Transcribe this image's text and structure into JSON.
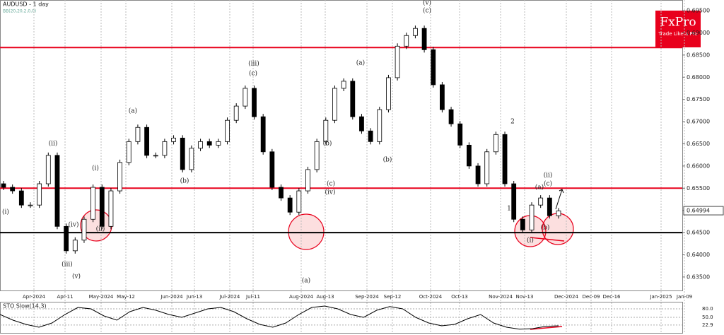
{
  "chart_data": {
    "type": "candlestick",
    "title": "AUDUSD - 1 day",
    "subtitle": "BB(20,20,2,0,0)",
    "ylim": [
      0.6318,
      0.6974
    ],
    "yticks": [
      {
        "value": 0.695,
        "label": "0.69500"
      },
      {
        "value": 0.69,
        "label": "0.69000"
      },
      {
        "value": 0.685,
        "label": "0.68500"
      },
      {
        "value": 0.68,
        "label": "0.68000"
      },
      {
        "value": 0.675,
        "label": "0.67500"
      },
      {
        "value": 0.67,
        "label": "0.67000"
      },
      {
        "value": 0.665,
        "label": "0.66500"
      },
      {
        "value": 0.66,
        "label": "0.66000"
      },
      {
        "value": 0.655,
        "label": "0.65500"
      },
      {
        "value": 0.65,
        "label": "0.65000"
      },
      {
        "value": 0.645,
        "label": "0.64500"
      },
      {
        "value": 0.64,
        "label": "0.64000"
      },
      {
        "value": 0.635,
        "label": "0.63500"
      }
    ],
    "xticks": [
      "Apr-2024",
      "Apr-11",
      "May-2024",
      "May-12",
      "Jun-2024",
      "Jun-13",
      "Jul-2024",
      "Jul-11",
      "Aug-2024",
      "Aug-13",
      "Sep-2024",
      "Sep-12",
      "Oct-2024",
      "Oct-13",
      "Nov-2024",
      "Nov-13",
      "Dec-2024",
      "Dec-09",
      "Dec-16",
      "Jan-2025",
      "Jan-09"
    ],
    "open": [
      0.656,
      0.6552,
      0.6544,
      0.6512,
      0.6512,
      0.656,
      0.6624,
      0.6464,
      0.6409,
      0.6433,
      0.648,
      0.6552,
      0.6464,
      0.6544,
      0.6608,
      0.6655,
      0.6687,
      0.6624,
      0.6624,
      0.6655,
      0.6663,
      0.6592,
      0.664,
      0.6655,
      0.6647,
      0.6655,
      0.6703,
      0.6735,
      0.6775,
      0.6711,
      0.6632,
      0.6552,
      0.6528,
      0.6496,
      0.6544,
      0.6592,
      0.6655,
      0.6703,
      0.6775,
      0.6791,
      0.6711,
      0.6679,
      0.6655,
      0.6727,
      0.6799,
      0.687,
      0.6894,
      0.691,
      0.6862,
      0.6783,
      0.6727,
      0.6695,
      0.6647,
      0.66,
      0.656,
      0.6632,
      0.6671,
      0.656,
      0.648,
      0.6456,
      0.6512,
      0.6528,
      0.6488
    ],
    "close": [
      0.6552,
      0.6544,
      0.6512,
      0.6512,
      0.656,
      0.6624,
      0.6464,
      0.6409,
      0.6433,
      0.648,
      0.6552,
      0.6464,
      0.6544,
      0.6608,
      0.6655,
      0.6687,
      0.6624,
      0.6624,
      0.6655,
      0.6663,
      0.6592,
      0.664,
      0.6655,
      0.6647,
      0.6655,
      0.6703,
      0.6735,
      0.6775,
      0.6711,
      0.6632,
      0.6552,
      0.6528,
      0.6496,
      0.6544,
      0.6592,
      0.6655,
      0.6703,
      0.6775,
      0.6791,
      0.6711,
      0.6679,
      0.6655,
      0.6727,
      0.6799,
      0.687,
      0.6894,
      0.691,
      0.6862,
      0.6783,
      0.6727,
      0.6695,
      0.6647,
      0.66,
      0.656,
      0.6632,
      0.6671,
      0.656,
      0.648,
      0.6456,
      0.6512,
      0.6528,
      0.6488,
      0.6499
    ],
    "levels": [
      {
        "value": 0.6867,
        "color": "#e8001c"
      },
      {
        "value": 0.655,
        "color": "#e8001c"
      },
      {
        "value": 0.645,
        "color": "#000000"
      }
    ],
    "last_price": 0.64994,
    "annotations": [
      "(i)",
      "(ii)",
      "(iv)",
      "(iii)",
      "(v)",
      "(i)",
      "(ii)",
      "(a)",
      "(b)",
      "(iii)",
      "(c)",
      "(a)",
      "(b)",
      "(c)",
      "(iv)",
      "(a)",
      "(b)",
      "(v)",
      "(c)",
      "2",
      "1",
      "(ii)",
      "(c)",
      "(a)",
      "(b)",
      "(i)"
    ],
    "brand": "FxPro",
    "brand_tagline": "Trade Like a Pro",
    "indicator": {
      "title": "STO Slow(14,3)",
      "ylim": [
        0,
        100
      ],
      "yticks": [
        {
          "value": 80,
          "label": "80.0"
        },
        {
          "value": 50,
          "label": "50.0"
        },
        {
          "value": 22.9,
          "label": "22.9"
        }
      ],
      "color": "#000000",
      "values": [
        60,
        40,
        25,
        15,
        30,
        60,
        85,
        80,
        55,
        40,
        70,
        85,
        75,
        60,
        50,
        65,
        80,
        85,
        70,
        45,
        25,
        15,
        30,
        60,
        85,
        90,
        80,
        60,
        50,
        75,
        88,
        80,
        50,
        30,
        20,
        25,
        45,
        60,
        30,
        15,
        8,
        10,
        18,
        20
      ]
    }
  }
}
